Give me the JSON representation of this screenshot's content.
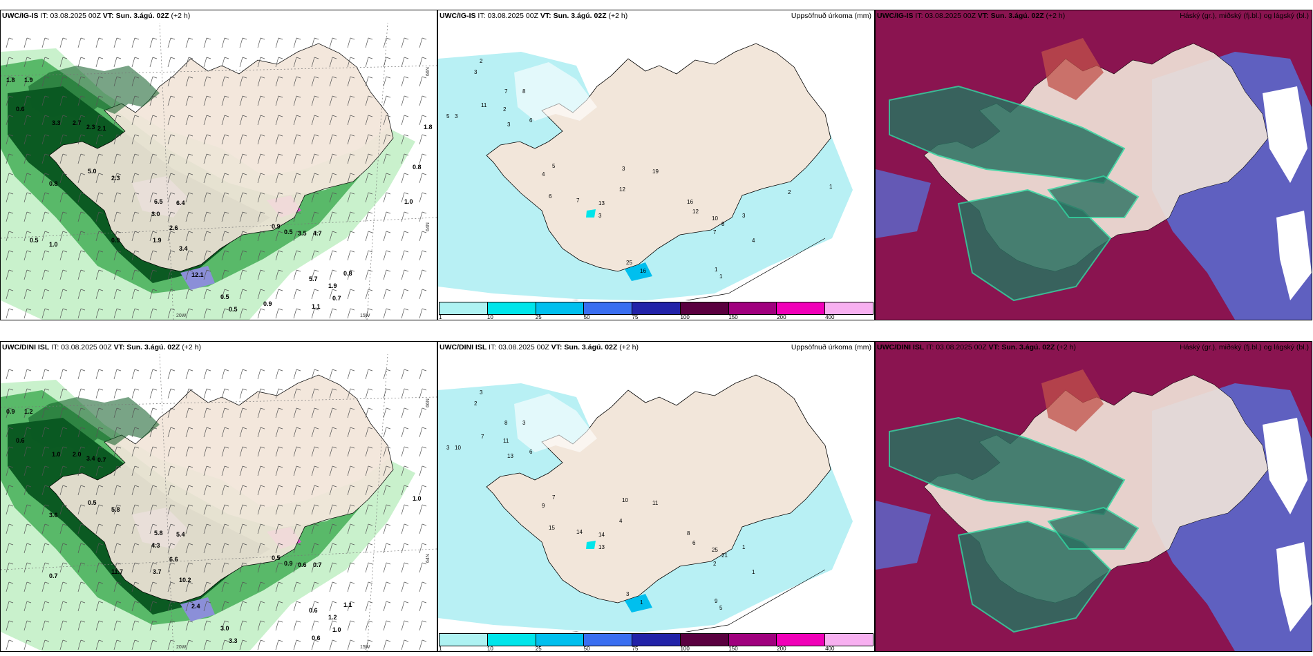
{
  "top": {
    "left_header": {
      "model": "UWC/IG-IS",
      "it_label": "IT:",
      "it_value": "03.08.2025 00Z",
      "vt_label": "VT:",
      "vt_value": "Sun. 3.ágú. 02Z",
      "lead": "(+2 h)"
    },
    "mid_header": {
      "model": "UWC/IG-IS",
      "it_label": "IT:",
      "it_value": "03.08.2025 00Z",
      "vt_label": "VT:",
      "vt_value": "Sun. 3.ágú. 02Z",
      "lead": "(+2 h)",
      "title": "Uppsöfnuð úrkoma (mm)"
    },
    "right_header": {
      "model": "UWC/IG-IS",
      "it_label": "IT:",
      "it_value": "03.08.2025 00Z",
      "vt_label": "VT:",
      "vt_value": "Sun. 3.ágú. 02Z",
      "lead": "(+2 h)",
      "title": "Háský (gr.), miðský (fj.bl.) og lágský (bl.)"
    },
    "left_values": [
      "1.8",
      "1.9",
      "0.6",
      "3.3",
      "2.7",
      "2.3",
      "2.1",
      "5.0",
      "2.3",
      "0.8",
      "6.5",
      "6.4",
      "3.0",
      "2.6",
      "1.9",
      "3.4",
      "12.1",
      "0.5",
      "0.9",
      "0.5",
      "0.8",
      "0.9",
      "0.5",
      "3.5",
      "4.7",
      "5.7",
      "1.9",
      "0.8",
      "0.7",
      "1.1",
      "1.0",
      "0.9",
      "0.5",
      "1.0",
      "1.8"
    ],
    "mid_values": [
      "2",
      "3",
      "5",
      "3",
      "11",
      "7",
      "8",
      "2",
      "3",
      "6",
      "5",
      "4",
      "6",
      "7",
      "13",
      "12",
      "19",
      "3",
      "3",
      "16",
      "12",
      "10",
      "8",
      "3",
      "4",
      "7",
      "25",
      "16",
      "1",
      "1",
      "2",
      "1"
    ]
  },
  "bottom": {
    "left_header": {
      "model": "UWC/DINI ISL",
      "it_label": "IT:",
      "it_value": "03.08.2025 00Z",
      "vt_label": "VT:",
      "vt_value": "Sun. 3.ágú. 02Z",
      "lead": "(+2 h)"
    },
    "mid_header": {
      "model": "UWC/DINI ISL",
      "it_label": "IT:",
      "it_value": "03.08.2025 00Z",
      "vt_label": "VT:",
      "vt_value": "Sun. 3.ágú. 02Z",
      "lead": "(+2 h)",
      "title": "Uppsöfnuð úrkoma (mm)"
    },
    "right_header": {
      "model": "UWC/DINI ISL",
      "it_label": "IT:",
      "it_value": "03.08.2025 00Z",
      "vt_label": "VT:",
      "vt_value": "Sun. 3.ágú. 02Z",
      "lead": "(+2 h)",
      "title": "Háský (gr.), miðský (fj.bl.) og lágský (bl.)"
    },
    "left_values": [
      "0.9",
      "1.2",
      "0.6",
      "1.0",
      "2.0",
      "3.4",
      "0.7",
      "0.5",
      "5.8",
      "3.6",
      "5.8",
      "5.4",
      "4.3",
      "6.6",
      "3.7",
      "10.2",
      "2.4",
      "3.0",
      "11.7",
      "3.3",
      "1.0",
      "0.5",
      "0.9",
      "0.6",
      "0.7",
      "0.6",
      "1.2",
      "1.1",
      "1.0",
      "0.6",
      "0.7"
    ],
    "mid_values": [
      "3",
      "2",
      "3",
      "10",
      "7",
      "8",
      "3",
      "11",
      "13",
      "6",
      "7",
      "9",
      "15",
      "14",
      "14",
      "4",
      "11",
      "10",
      "13",
      "8",
      "6",
      "25",
      "21",
      "1",
      "1",
      "2",
      "3",
      "1",
      "9",
      "5"
    ]
  },
  "axes": {
    "lon_left": "20W",
    "lon_right": "15W",
    "lat_top": "66N",
    "lat_mid": "64N"
  },
  "colorbar": {
    "ticks": [
      "1",
      "10",
      "25",
      "50",
      "75",
      "100",
      "150",
      "200",
      "400"
    ],
    "colors": [
      "#aef2f2",
      "#00e5ea",
      "#00bfee",
      "#3a6ef0",
      "#2222a8",
      "#5a0040",
      "#a0007e",
      "#f000b8",
      "#f7b0f0"
    ]
  },
  "colors": {
    "land": "#f2e6da",
    "sea": "#ffffff",
    "precip_light": "#c3f0c6",
    "precip_mid": "#4db35e",
    "precip_dark": "#0b5a22",
    "precip_blue": "#8b8fd8",
    "precip_pink": "#e055d0",
    "mid_cloud": "#8a1450",
    "low_cloud": "#5f60c0",
    "high_cloud": "#2a7060",
    "accum_fill": "#b8f0f4"
  }
}
